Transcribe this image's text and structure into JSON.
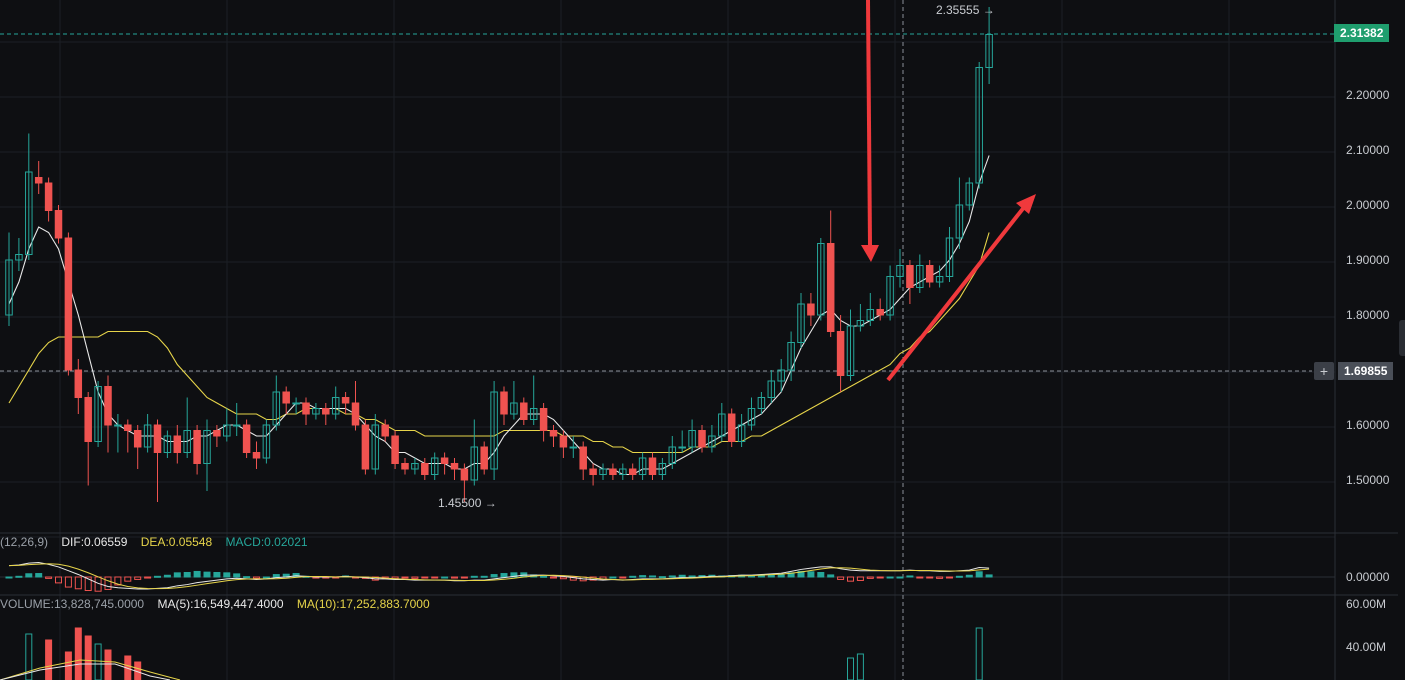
{
  "price_axis_labels": [
    "2.20000",
    "2.10000",
    "2.00000",
    "1.90000",
    "1.80000",
    "1.60000",
    "1.50000"
  ],
  "current_price_tag": "2.31382",
  "crosshair_price_tag": "1.69855",
  "crosshair_symbol": "+",
  "high_marker": "2.35555 →",
  "low_marker": "1.45500 →",
  "macd": {
    "params": "(12,26,9)",
    "dif": "DIF:0.06559",
    "dea": "DEA:0.05548",
    "macd": "MACD:0.02021",
    "axis_zero": "0.00000"
  },
  "volume": {
    "label": "VOLUME:13,828,745.0000",
    "ma5": "MA(5):16,549,447.4000",
    "ma10": "MA(10):17,252,883.7000",
    "axis_labels": [
      "60.00M",
      "40.00M"
    ]
  },
  "colors": {
    "up": "#26a69a",
    "down": "#ef5350",
    "ma_short": "#e8e8e8",
    "ma_long": "#e6d44a",
    "arrow": "#f0393c",
    "grid": "#1c1f25",
    "tag_green": "#1f9e6e",
    "tag_gray": "#4a4f58"
  },
  "chart_data": {
    "type": "candlestick",
    "ylim": [
      1.42,
      2.37
    ],
    "y_ticks": [
      1.5,
      1.6,
      1.8,
      1.9,
      2.0,
      2.1,
      2.2
    ],
    "candles": [
      [
        1.8,
        1.9,
        1.95,
        1.78
      ],
      [
        1.9,
        1.91,
        1.94,
        1.88
      ],
      [
        1.91,
        2.06,
        2.13,
        1.9
      ],
      [
        2.05,
        2.04,
        2.08,
        2.02
      ],
      [
        2.04,
        1.99,
        2.05,
        1.97
      ],
      [
        1.99,
        1.94,
        2.0,
        1.93
      ],
      [
        1.94,
        1.7,
        1.95,
        1.69
      ],
      [
        1.7,
        1.65,
        1.72,
        1.62
      ],
      [
        1.65,
        1.57,
        1.66,
        1.49
      ],
      [
        1.57,
        1.67,
        1.68,
        1.56
      ],
      [
        1.67,
        1.6,
        1.69,
        1.55
      ],
      [
        1.6,
        1.6,
        1.62,
        1.55
      ],
      [
        1.6,
        1.59,
        1.61,
        1.55
      ],
      [
        1.59,
        1.56,
        1.6,
        1.52
      ],
      [
        1.56,
        1.6,
        1.62,
        1.55
      ],
      [
        1.6,
        1.55,
        1.61,
        1.46
      ],
      [
        1.55,
        1.58,
        1.59,
        1.54
      ],
      [
        1.58,
        1.55,
        1.6,
        1.53
      ],
      [
        1.55,
        1.59,
        1.65,
        1.54
      ],
      [
        1.59,
        1.53,
        1.6,
        1.51
      ],
      [
        1.53,
        1.59,
        1.61,
        1.48
      ],
      [
        1.59,
        1.58,
        1.6,
        1.56
      ],
      [
        1.58,
        1.6,
        1.63,
        1.57
      ],
      [
        1.6,
        1.6,
        1.64,
        1.58
      ],
      [
        1.6,
        1.55,
        1.61,
        1.54
      ],
      [
        1.55,
        1.54,
        1.57,
        1.52
      ],
      [
        1.54,
        1.6,
        1.61,
        1.53
      ],
      [
        1.6,
        1.66,
        1.69,
        1.59
      ],
      [
        1.66,
        1.64,
        1.67,
        1.62
      ],
      [
        1.64,
        1.64,
        1.65,
        1.62
      ],
      [
        1.64,
        1.62,
        1.65,
        1.6
      ],
      [
        1.62,
        1.63,
        1.64,
        1.61
      ],
      [
        1.63,
        1.62,
        1.64,
        1.6
      ],
      [
        1.62,
        1.65,
        1.67,
        1.61
      ],
      [
        1.65,
        1.64,
        1.66,
        1.62
      ],
      [
        1.64,
        1.6,
        1.68,
        1.59
      ],
      [
        1.6,
        1.52,
        1.61,
        1.51
      ],
      [
        1.52,
        1.6,
        1.62,
        1.51
      ],
      [
        1.6,
        1.58,
        1.61,
        1.57
      ],
      [
        1.58,
        1.53,
        1.59,
        1.52
      ],
      [
        1.53,
        1.52,
        1.54,
        1.51
      ],
      [
        1.52,
        1.53,
        1.54,
        1.51
      ],
      [
        1.53,
        1.51,
        1.54,
        1.5
      ],
      [
        1.51,
        1.54,
        1.55,
        1.5
      ],
      [
        1.54,
        1.53,
        1.55,
        1.51
      ],
      [
        1.53,
        1.52,
        1.54,
        1.5
      ],
      [
        1.52,
        1.5,
        1.53,
        1.46
      ],
      [
        1.5,
        1.56,
        1.61,
        1.49
      ],
      [
        1.56,
        1.52,
        1.57,
        1.51
      ],
      [
        1.52,
        1.66,
        1.68,
        1.5
      ],
      [
        1.66,
        1.62,
        1.67,
        1.6
      ],
      [
        1.62,
        1.64,
        1.68,
        1.61
      ],
      [
        1.64,
        1.61,
        1.65,
        1.6
      ],
      [
        1.61,
        1.63,
        1.69,
        1.6
      ],
      [
        1.63,
        1.59,
        1.64,
        1.57
      ],
      [
        1.59,
        1.58,
        1.6,
        1.56
      ],
      [
        1.58,
        1.56,
        1.59,
        1.54
      ],
      [
        1.56,
        1.56,
        1.58,
        1.54
      ],
      [
        1.56,
        1.52,
        1.57,
        1.5
      ],
      [
        1.52,
        1.51,
        1.53,
        1.49
      ],
      [
        1.51,
        1.52,
        1.53,
        1.5
      ],
      [
        1.52,
        1.51,
        1.53,
        1.5
      ],
      [
        1.51,
        1.52,
        1.53,
        1.5
      ],
      [
        1.52,
        1.51,
        1.53,
        1.5
      ],
      [
        1.51,
        1.54,
        1.55,
        1.5
      ],
      [
        1.54,
        1.51,
        1.55,
        1.5
      ],
      [
        1.51,
        1.53,
        1.54,
        1.5
      ],
      [
        1.53,
        1.56,
        1.58,
        1.52
      ],
      [
        1.56,
        1.56,
        1.59,
        1.55
      ],
      [
        1.56,
        1.59,
        1.61,
        1.55
      ],
      [
        1.59,
        1.56,
        1.6,
        1.55
      ],
      [
        1.56,
        1.58,
        1.6,
        1.55
      ],
      [
        1.58,
        1.62,
        1.64,
        1.57
      ],
      [
        1.62,
        1.57,
        1.63,
        1.56
      ],
      [
        1.57,
        1.6,
        1.62,
        1.56
      ],
      [
        1.6,
        1.63,
        1.65,
        1.59
      ],
      [
        1.63,
        1.65,
        1.66,
        1.62
      ],
      [
        1.65,
        1.68,
        1.7,
        1.64
      ],
      [
        1.68,
        1.7,
        1.72,
        1.66
      ],
      [
        1.7,
        1.75,
        1.77,
        1.68
      ],
      [
        1.75,
        1.82,
        1.84,
        1.74
      ],
      [
        1.82,
        1.8,
        1.84,
        1.78
      ],
      [
        1.8,
        1.93,
        1.94,
        1.79
      ],
      [
        1.93,
        1.77,
        1.99,
        1.76
      ],
      [
        1.77,
        1.69,
        1.8,
        1.66
      ],
      [
        1.69,
        1.78,
        1.81,
        1.68
      ],
      [
        1.78,
        1.79,
        1.82,
        1.77
      ],
      [
        1.79,
        1.81,
        1.84,
        1.78
      ],
      [
        1.81,
        1.8,
        1.83,
        1.79
      ],
      [
        1.8,
        1.87,
        1.89,
        1.79
      ],
      [
        1.87,
        1.89,
        1.92,
        1.85
      ],
      [
        1.89,
        1.85,
        1.9,
        1.82
      ],
      [
        1.85,
        1.89,
        1.91,
        1.84
      ],
      [
        1.89,
        1.86,
        1.9,
        1.85
      ],
      [
        1.86,
        1.87,
        1.89,
        1.85
      ],
      [
        1.87,
        1.94,
        1.96,
        1.86
      ],
      [
        1.94,
        2.0,
        2.05,
        1.92
      ],
      [
        2.0,
        2.04,
        2.05,
        1.99
      ],
      [
        2.04,
        2.25,
        2.26,
        2.03
      ],
      [
        2.25,
        2.31,
        2.36,
        2.22
      ]
    ],
    "ma_short_values": [
      1.82,
      1.86,
      1.92,
      1.96,
      1.95,
      1.92,
      1.86,
      1.8,
      1.73,
      1.66,
      1.62,
      1.6,
      1.59,
      1.58,
      1.58,
      1.58,
      1.57,
      1.57,
      1.57,
      1.58,
      1.58,
      1.59,
      1.6,
      1.6,
      1.59,
      1.58,
      1.58,
      1.6,
      1.62,
      1.64,
      1.64,
      1.63,
      1.63,
      1.63,
      1.63,
      1.62,
      1.6,
      1.58,
      1.57,
      1.55,
      1.55,
      1.54,
      1.53,
      1.53,
      1.53,
      1.52,
      1.52,
      1.53,
      1.53,
      1.55,
      1.58,
      1.6,
      1.62,
      1.62,
      1.62,
      1.61,
      1.59,
      1.57,
      1.55,
      1.53,
      1.52,
      1.52,
      1.51,
      1.51,
      1.52,
      1.52,
      1.52,
      1.53,
      1.54,
      1.55,
      1.56,
      1.57,
      1.58,
      1.59,
      1.6,
      1.61,
      1.62,
      1.64,
      1.66,
      1.7,
      1.74,
      1.77,
      1.8,
      1.81,
      1.79,
      1.78,
      1.78,
      1.79,
      1.8,
      1.81,
      1.83,
      1.85,
      1.86,
      1.87,
      1.88,
      1.9,
      1.93,
      1.97,
      2.04,
      2.09
    ],
    "ma_long_values": [
      1.64,
      1.67,
      1.7,
      1.73,
      1.75,
      1.76,
      1.76,
      1.76,
      1.76,
      1.76,
      1.77,
      1.77,
      1.77,
      1.77,
      1.77,
      1.76,
      1.74,
      1.71,
      1.69,
      1.67,
      1.65,
      1.64,
      1.63,
      1.62,
      1.62,
      1.62,
      1.61,
      1.61,
      1.62,
      1.62,
      1.63,
      1.63,
      1.63,
      1.63,
      1.62,
      1.62,
      1.61,
      1.61,
      1.6,
      1.59,
      1.59,
      1.59,
      1.58,
      1.58,
      1.58,
      1.58,
      1.58,
      1.58,
      1.58,
      1.58,
      1.59,
      1.59,
      1.59,
      1.59,
      1.59,
      1.59,
      1.58,
      1.58,
      1.58,
      1.57,
      1.57,
      1.56,
      1.56,
      1.55,
      1.55,
      1.55,
      1.55,
      1.55,
      1.55,
      1.56,
      1.56,
      1.56,
      1.57,
      1.57,
      1.57,
      1.58,
      1.58,
      1.59,
      1.6,
      1.61,
      1.62,
      1.63,
      1.64,
      1.65,
      1.66,
      1.67,
      1.68,
      1.69,
      1.7,
      1.71,
      1.73,
      1.74,
      1.76,
      1.77,
      1.79,
      1.81,
      1.83,
      1.86,
      1.89,
      1.95
    ]
  }
}
